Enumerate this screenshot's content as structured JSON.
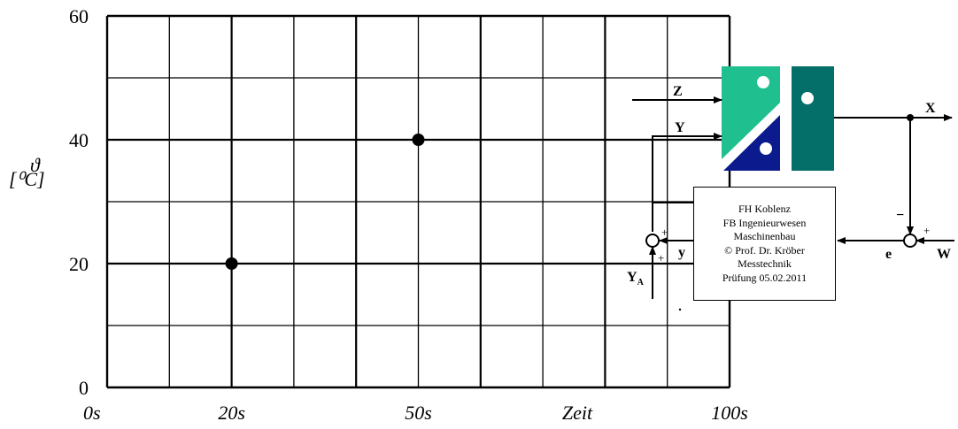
{
  "chart_data": {
    "type": "scatter",
    "x_tick_labels": [
      "0s",
      "20s",
      "50s",
      "Zeit",
      "100s"
    ],
    "y_tick_labels": [
      "0",
      "20",
      "40",
      "60"
    ],
    "y_symbol": "ϑ",
    "y_unit": "[⁰C]",
    "xlim": [
      0,
      100
    ],
    "ylim": [
      0,
      60
    ],
    "grid": true,
    "points": [
      {
        "x": 20,
        "y": 20
      },
      {
        "x": 50,
        "y": 40
      }
    ]
  },
  "block_diagram": {
    "signals": {
      "z": "Z",
      "y_in": "Y",
      "x_out": "X",
      "y_small": "y",
      "e": "e",
      "w": "W",
      "ya_main": "Y",
      "ya_sub": "A"
    },
    "signs": {
      "left_top": "+",
      "left_bottom": "+",
      "right_top": "−",
      "right_plus": "+"
    },
    "colors": {
      "light_green": "#1fbf8f",
      "dark_teal": "#046e68",
      "navy": "#0b1a8c"
    }
  },
  "info_box": {
    "lines": [
      "FH Koblenz",
      "FB Ingenieurwesen",
      "Maschinenbau",
      "© Prof. Dr. Kröber",
      "Messtechnik",
      "Prüfung 05.02.2011"
    ]
  }
}
